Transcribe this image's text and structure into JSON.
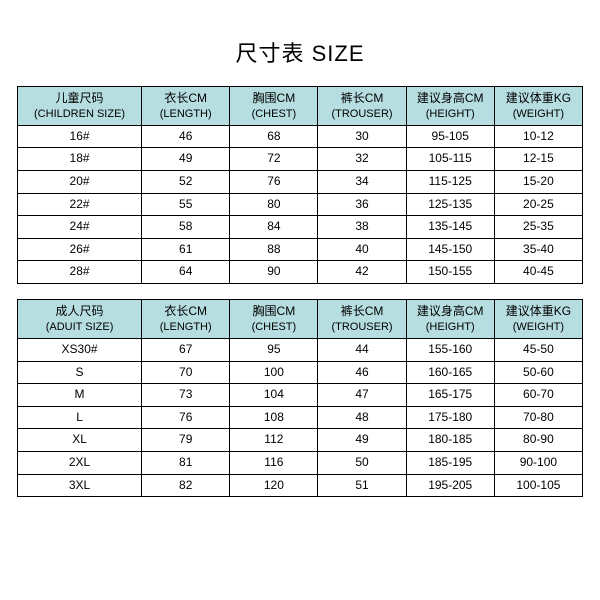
{
  "title": "尺寸表 SIZE",
  "colors": {
    "header_bg": "#b6dde0",
    "border": "#000000",
    "text": "#000000",
    "background": "#ffffff"
  },
  "children_table": {
    "headers": [
      {
        "cn": "儿童尺码",
        "en": "(CHILDREN SIZE)"
      },
      {
        "cn": "衣长CM",
        "en": "(LENGTH)"
      },
      {
        "cn": "胸围CM",
        "en": "(CHEST)"
      },
      {
        "cn": "裤长CM",
        "en": "(TROUSER)"
      },
      {
        "cn": "建议身高CM",
        "en": "(HEIGHT)"
      },
      {
        "cn": "建议体重KG",
        "en": "(WEIGHT)"
      }
    ],
    "rows": [
      [
        "16#",
        "46",
        "68",
        "30",
        "95-105",
        "10-12"
      ],
      [
        "18#",
        "49",
        "72",
        "32",
        "105-115",
        "12-15"
      ],
      [
        "20#",
        "52",
        "76",
        "34",
        "115-125",
        "15-20"
      ],
      [
        "22#",
        "55",
        "80",
        "36",
        "125-135",
        "20-25"
      ],
      [
        "24#",
        "58",
        "84",
        "38",
        "135-145",
        "25-35"
      ],
      [
        "26#",
        "61",
        "88",
        "40",
        "145-150",
        "35-40"
      ],
      [
        "28#",
        "64",
        "90",
        "42",
        "150-155",
        "40-45"
      ]
    ]
  },
  "adult_table": {
    "headers": [
      {
        "cn": "成人尺码",
        "en": "(ADUIT SIZE)"
      },
      {
        "cn": "衣长CM",
        "en": "(LENGTH)"
      },
      {
        "cn": "胸围CM",
        "en": "(CHEST)"
      },
      {
        "cn": "裤长CM",
        "en": "(TROUSER)"
      },
      {
        "cn": "建议身高CM",
        "en": "(HEIGHT)"
      },
      {
        "cn": "建议体重KG",
        "en": "(WEIGHT)"
      }
    ],
    "rows": [
      [
        "XS30#",
        "67",
        "95",
        "44",
        "155-160",
        "45-50"
      ],
      [
        "S",
        "70",
        "100",
        "46",
        "160-165",
        "50-60"
      ],
      [
        "M",
        "73",
        "104",
        "47",
        "165-175",
        "60-70"
      ],
      [
        "L",
        "76",
        "108",
        "48",
        "175-180",
        "70-80"
      ],
      [
        "XL",
        "79",
        "112",
        "49",
        "180-185",
        "80-90"
      ],
      [
        "2XL",
        "81",
        "116",
        "50",
        "185-195",
        "90-100"
      ],
      [
        "3XL",
        "82",
        "120",
        "51",
        "195-205",
        "100-105"
      ]
    ]
  }
}
